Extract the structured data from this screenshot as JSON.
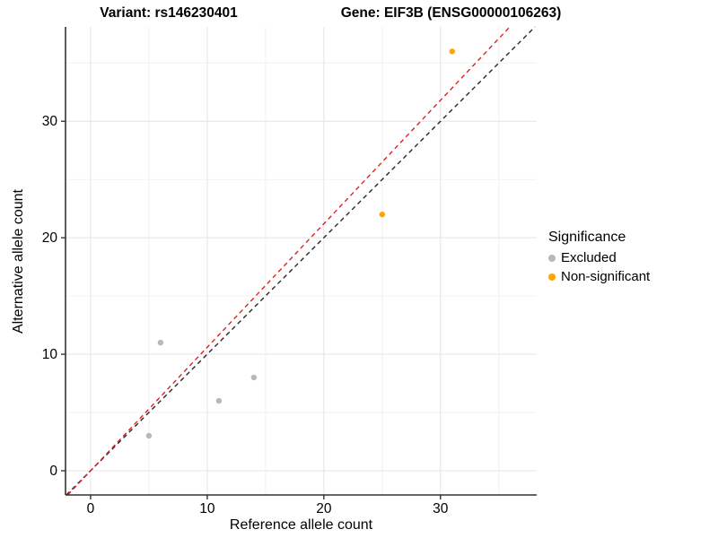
{
  "chart_data": {
    "type": "scatter",
    "title_left": "Variant: rs146230401",
    "title_right": "Gene: EIF3B (ENSG00000106263)",
    "xlabel": "Reference allele count",
    "ylabel": "Alternative allele count",
    "xlim": [
      -2.15,
      38.25
    ],
    "ylim": [
      -2.08,
      38.1
    ],
    "xticks": [
      0,
      10,
      20,
      30
    ],
    "yticks": [
      0,
      10,
      20,
      30
    ],
    "minor_ticks": [
      5,
      15,
      25,
      35
    ],
    "grid": true,
    "legend": {
      "title": "Significance",
      "position": "right"
    },
    "series": [
      {
        "name": "Excluded",
        "color": "#B8B8B8",
        "points": [
          [
            5,
            3
          ],
          [
            6,
            11
          ],
          [
            11,
            6
          ],
          [
            14,
            8
          ]
        ]
      },
      {
        "name": "Non-significant",
        "color": "#FFA500",
        "points": [
          [
            25,
            22
          ],
          [
            31,
            36
          ]
        ]
      }
    ],
    "lines": [
      {
        "name": "identity-line",
        "slope": 1.0,
        "intercept": 0,
        "color": "#262626",
        "style": "dashed"
      },
      {
        "name": "fit-line",
        "slope": 1.06,
        "intercept": 0,
        "color": "#E02020",
        "style": "dashed"
      }
    ],
    "colors": {
      "grid_major": "#E4E4E4",
      "grid_minor": "#F1F1F1",
      "axis_line": "#333333",
      "tick_text": "#000000"
    }
  }
}
